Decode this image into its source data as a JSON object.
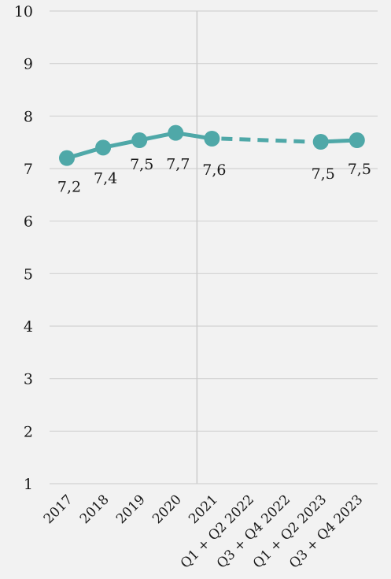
{
  "chart_data": {
    "type": "line",
    "title": "",
    "xlabel": "",
    "ylabel": "",
    "ylim": [
      1,
      10
    ],
    "yticks": [
      "1",
      "2",
      "3",
      "4",
      "5",
      "6",
      "7",
      "8",
      "9",
      "10"
    ],
    "grid": "horizontal",
    "categories": [
      "2017",
      "2018",
      "2019",
      "2020",
      "2021",
      "Q1 + Q2 2022",
      "Q3 + Q4 2022",
      "Q1 + Q2 2023",
      "Q3 + Q4 2023"
    ],
    "series": [
      {
        "values": [
          7.2,
          7.4,
          7.54,
          7.68,
          7.57,
          null,
          null,
          7.51,
          7.54
        ],
        "labels": [
          "7,2",
          "7,4",
          "7,5",
          "7,7",
          "7,6",
          "",
          "",
          "7,5",
          "7,5"
        ],
        "gap_style": "dashed",
        "color": "#4fa8a8"
      }
    ],
    "vertical_separator_after": "2020"
  }
}
